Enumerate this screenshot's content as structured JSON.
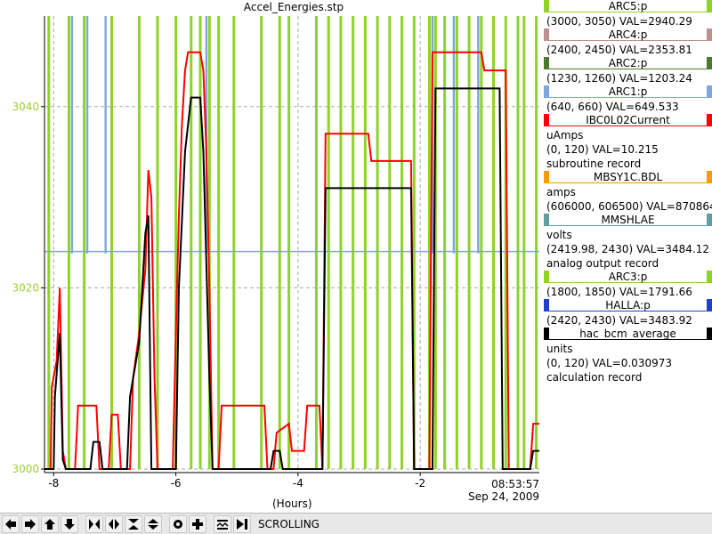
{
  "window_title": "Accel_Energies.stp",
  "chart_data": {
    "type": "line",
    "title": "Accel_Energies.stp",
    "xlabel": "(Hours)",
    "ylabel": "",
    "xlim": [
      -8.15,
      -0.05
    ],
    "ylim": [
      3000,
      3050
    ],
    "x_ticks": [
      -8,
      -6,
      -4,
      -2
    ],
    "x_tick_labels": [
      "-8",
      "-6",
      "-4",
      "-2"
    ],
    "y_ticks": [
      3000,
      3020,
      3040
    ],
    "y_tick_labels": [
      "3000",
      "3020",
      "3040"
    ],
    "grid": true,
    "current_time": "08:53:57",
    "current_date": "Sep 24, 2009",
    "series": [
      {
        "name": "ARC1:p",
        "color": "#7ea6e0",
        "baseline": 3024,
        "spikes": [
          -7.7,
          -7.45,
          -7.15,
          -5.5,
          -1.8,
          -1.45,
          -1.05
        ]
      },
      {
        "name": "IBC0L02Current",
        "color": "#ff0000",
        "points": [
          [
            -8.15,
            3000
          ],
          [
            -8.05,
            3000
          ],
          [
            -8.03,
            3009
          ],
          [
            -7.95,
            3012
          ],
          [
            -7.9,
            3020
          ],
          [
            -7.85,
            3002
          ],
          [
            -7.8,
            3000
          ],
          [
            -7.65,
            3000
          ],
          [
            -7.6,
            3007
          ],
          [
            -7.3,
            3007
          ],
          [
            -7.25,
            3000
          ],
          [
            -7.1,
            3000
          ],
          [
            -7.05,
            3006
          ],
          [
            -6.95,
            3006
          ],
          [
            -6.9,
            3000
          ],
          [
            -6.75,
            3000
          ],
          [
            -6.7,
            3010
          ],
          [
            -6.6,
            3015
          ],
          [
            -6.5,
            3022
          ],
          [
            -6.45,
            3033
          ],
          [
            -6.4,
            3030
          ],
          [
            -6.35,
            3010
          ],
          [
            -6.3,
            3000
          ],
          [
            -6.05,
            3000
          ],
          [
            -6.0,
            3015
          ],
          [
            -5.95,
            3028
          ],
          [
            -5.9,
            3038
          ],
          [
            -5.85,
            3044
          ],
          [
            -5.8,
            3046
          ],
          [
            -5.6,
            3046
          ],
          [
            -5.55,
            3044
          ],
          [
            -5.5,
            3035
          ],
          [
            -5.45,
            3020
          ],
          [
            -5.4,
            3000
          ],
          [
            -5.3,
            3000
          ],
          [
            -5.25,
            3007
          ],
          [
            -4.55,
            3007
          ],
          [
            -4.5,
            3000
          ],
          [
            -4.4,
            3000
          ],
          [
            -4.35,
            3004
          ],
          [
            -4.15,
            3005
          ],
          [
            -4.1,
            3002
          ],
          [
            -3.9,
            3002
          ],
          [
            -3.85,
            3007
          ],
          [
            -3.65,
            3007
          ],
          [
            -3.6,
            3000
          ],
          [
            -3.55,
            3037
          ],
          [
            -2.85,
            3037
          ],
          [
            -2.8,
            3034
          ],
          [
            -2.15,
            3034
          ],
          [
            -2.1,
            3000
          ],
          [
            -1.85,
            3000
          ],
          [
            -1.8,
            3046
          ],
          [
            -1.0,
            3046
          ],
          [
            -0.95,
            3044
          ],
          [
            -0.6,
            3044
          ],
          [
            -0.55,
            3000
          ],
          [
            -0.2,
            3000
          ],
          [
            -0.15,
            3005
          ],
          [
            -0.05,
            3005
          ]
        ]
      },
      {
        "name": "hac_bcm_average",
        "color": "#000000",
        "points": [
          [
            -8.15,
            3000
          ],
          [
            -8.0,
            3000
          ],
          [
            -7.98,
            3008
          ],
          [
            -7.9,
            3015
          ],
          [
            -7.85,
            3001
          ],
          [
            -7.8,
            3000
          ],
          [
            -7.4,
            3000
          ],
          [
            -7.35,
            3003
          ],
          [
            -7.25,
            3003
          ],
          [
            -7.2,
            3000
          ],
          [
            -6.8,
            3000
          ],
          [
            -6.75,
            3008
          ],
          [
            -6.6,
            3014
          ],
          [
            -6.5,
            3026
          ],
          [
            -6.45,
            3028
          ],
          [
            -6.4,
            3000
          ],
          [
            -6.0,
            3000
          ],
          [
            -5.95,
            3020
          ],
          [
            -5.85,
            3035
          ],
          [
            -5.75,
            3041
          ],
          [
            -5.6,
            3041
          ],
          [
            -5.55,
            3035
          ],
          [
            -5.45,
            3010
          ],
          [
            -5.4,
            3000
          ],
          [
            -4.45,
            3000
          ],
          [
            -4.4,
            3002
          ],
          [
            -4.3,
            3002
          ],
          [
            -4.25,
            3000
          ],
          [
            -3.6,
            3000
          ],
          [
            -3.55,
            3031
          ],
          [
            -2.15,
            3031
          ],
          [
            -2.1,
            3000
          ],
          [
            -1.8,
            3000
          ],
          [
            -1.75,
            3042
          ],
          [
            -0.7,
            3042
          ],
          [
            -0.65,
            3000
          ],
          [
            -0.2,
            3000
          ],
          [
            -0.15,
            3002
          ],
          [
            -0.05,
            3002
          ]
        ]
      },
      {
        "name": "ARC5:p",
        "color": "#8fd22a",
        "kind": "vertical-bands",
        "bands": [
          -8.08,
          -7.75,
          -7.5,
          -7.05,
          -6.6,
          -6.3,
          -6.0,
          -5.75,
          -5.6,
          -5.45,
          -5.3,
          -5.05,
          -4.6,
          -4.3,
          -4.15,
          -3.7,
          -3.5,
          -3.3,
          -3.1,
          -2.9,
          -2.7,
          -2.5,
          -2.3,
          -2.1,
          -1.85,
          -1.75,
          -1.6,
          -1.4,
          -1.2,
          -1.0,
          -0.8,
          -0.6,
          -0.4,
          -0.3,
          -0.1
        ]
      }
    ]
  },
  "legend": [
    {
      "name": "ARC5:p",
      "color": "#8fd22a",
      "lines": [
        "(3000, 3050) VAL=2940.29"
      ]
    },
    {
      "name": "ARC4:p",
      "color": "#c09090",
      "lines": [
        "(2400, 2450) VAL=2353.81"
      ]
    },
    {
      "name": "ARC2:p",
      "color": "#4a7a2a",
      "lines": [
        "(1230, 1260) VAL=1203.24"
      ]
    },
    {
      "name": "ARC1:p",
      "color": "#7ea6e0",
      "lines": [
        "(640, 660) VAL=649.533"
      ]
    },
    {
      "name": "IBC0L02Current",
      "color": "#ff0000",
      "lines": [
        "uAmps",
        "(0, 120) VAL=10.215",
        "subroutine record"
      ]
    },
    {
      "name": "MBSY1C.BDL",
      "color": "#ff9900",
      "lines": [
        "amps",
        "(606000, 606500) VAL=870864"
      ]
    },
    {
      "name": "MMSHLAE",
      "color": "#5f9ea0",
      "lines": [
        "volts",
        "(2419.98, 2430) VAL=3484.12",
        "analog output record"
      ]
    },
    {
      "name": "ARC3:p",
      "color": "#8fd22a",
      "lines": [
        "(1800, 1850) VAL=1791.66"
      ]
    },
    {
      "name": "HALLA:p",
      "color": "#1f3fd0",
      "lines": [
        "(2420, 2430) VAL=3483.92"
      ]
    },
    {
      "name": "hac_bcm_average",
      "color": "#000000",
      "lines": [
        "units",
        "(0, 120) VAL=0.030973",
        "calculation record"
      ]
    }
  ],
  "toolbar": {
    "buttons": [
      "arrow-left-icon",
      "arrow-right-icon",
      "arrow-up-icon",
      "arrow-down-icon",
      "compress-horizontal-icon",
      "expand-horizontal-icon",
      "compress-vertical-icon",
      "expand-vertical-icon",
      "record-icon",
      "add-icon",
      "zoom-fit-icon",
      "jump-to-end-icon"
    ],
    "status": "SCROLLING"
  }
}
